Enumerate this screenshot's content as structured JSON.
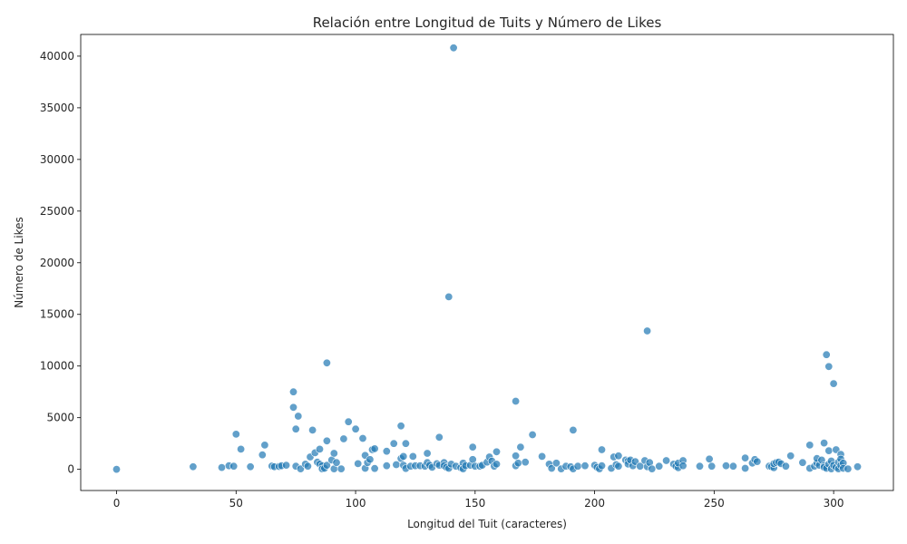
{
  "chart_data": {
    "type": "scatter",
    "title": "Relación entre Longitud de Tuits y Número de Likes",
    "xlabel": "Longitud del Tuit (caracteres)",
    "ylabel": "Número de Likes",
    "xlim": [
      -15,
      325
    ],
    "ylim": [
      -2050,
      42100
    ],
    "xticks": [
      0,
      50,
      100,
      150,
      200,
      250,
      300
    ],
    "yticks": [
      0,
      5000,
      10000,
      15000,
      20000,
      25000,
      30000,
      35000,
      40000
    ],
    "grid": false,
    "marker_color": "#1f77b4",
    "points": [
      [
        0,
        0
      ],
      [
        32,
        250
      ],
      [
        44,
        180
      ],
      [
        47,
        350
      ],
      [
        49,
        300
      ],
      [
        50,
        3400
      ],
      [
        52,
        1950
      ],
      [
        56,
        250
      ],
      [
        61,
        1400
      ],
      [
        62,
        2350
      ],
      [
        65,
        320
      ],
      [
        66,
        250
      ],
      [
        68,
        280
      ],
      [
        69,
        350
      ],
      [
        71,
        400
      ],
      [
        74,
        7500
      ],
      [
        74,
        6000
      ],
      [
        75,
        3900
      ],
      [
        75,
        300
      ],
      [
        76,
        5150
      ],
      [
        77,
        50
      ],
      [
        79,
        500
      ],
      [
        80,
        300
      ],
      [
        81,
        1200
      ],
      [
        82,
        3800
      ],
      [
        83,
        1600
      ],
      [
        84,
        700
      ],
      [
        85,
        500
      ],
      [
        85,
        1950
      ],
      [
        86,
        350
      ],
      [
        86,
        50
      ],
      [
        87,
        100
      ],
      [
        88,
        10300
      ],
      [
        88,
        2750
      ],
      [
        88,
        400
      ],
      [
        90,
        900
      ],
      [
        91,
        1550
      ],
      [
        91,
        50
      ],
      [
        92,
        650
      ],
      [
        94,
        50
      ],
      [
        95,
        2950
      ],
      [
        97,
        4600
      ],
      [
        100,
        3900
      ],
      [
        101,
        550
      ],
      [
        103,
        3000
      ],
      [
        104,
        1350
      ],
      [
        104,
        100
      ],
      [
        105,
        650
      ],
      [
        106,
        950
      ],
      [
        107,
        1900
      ],
      [
        108,
        2000
      ],
      [
        108,
        80
      ],
      [
        113,
        1750
      ],
      [
        113,
        350
      ],
      [
        116,
        2500
      ],
      [
        117,
        450
      ],
      [
        119,
        4200
      ],
      [
        119,
        1050
      ],
      [
        120,
        400
      ],
      [
        120,
        1250
      ],
      [
        121,
        2500
      ],
      [
        121,
        80
      ],
      [
        123,
        300
      ],
      [
        124,
        1250
      ],
      [
        125,
        350
      ],
      [
        127,
        350
      ],
      [
        129,
        300
      ],
      [
        130,
        1550
      ],
      [
        130,
        650
      ],
      [
        131,
        400
      ],
      [
        132,
        200
      ],
      [
        134,
        550
      ],
      [
        135,
        3100
      ],
      [
        135,
        400
      ],
      [
        137,
        650
      ],
      [
        137,
        350
      ],
      [
        138,
        200
      ],
      [
        139,
        16700
      ],
      [
        139,
        100
      ],
      [
        140,
        500
      ],
      [
        141,
        40800
      ],
      [
        142,
        300
      ],
      [
        144,
        150
      ],
      [
        145,
        600
      ],
      [
        145,
        50
      ],
      [
        146,
        350
      ],
      [
        148,
        400
      ],
      [
        149,
        2150
      ],
      [
        149,
        950
      ],
      [
        150,
        300
      ],
      [
        152,
        300
      ],
      [
        153,
        400
      ],
      [
        155,
        700
      ],
      [
        156,
        1200
      ],
      [
        157,
        800
      ],
      [
        158,
        300
      ],
      [
        159,
        500
      ],
      [
        159,
        1700
      ],
      [
        167,
        6600
      ],
      [
        167,
        1300
      ],
      [
        167,
        350
      ],
      [
        168,
        600
      ],
      [
        169,
        2150
      ],
      [
        171,
        700
      ],
      [
        174,
        3350
      ],
      [
        178,
        1250
      ],
      [
        181,
        500
      ],
      [
        182,
        100
      ],
      [
        184,
        600
      ],
      [
        186,
        50
      ],
      [
        188,
        300
      ],
      [
        190,
        250
      ],
      [
        191,
        3800
      ],
      [
        191,
        50
      ],
      [
        193,
        300
      ],
      [
        196,
        350
      ],
      [
        200,
        400
      ],
      [
        201,
        200
      ],
      [
        202,
        50
      ],
      [
        203,
        1900
      ],
      [
        203,
        350
      ],
      [
        207,
        100
      ],
      [
        208,
        1200
      ],
      [
        209,
        450
      ],
      [
        210,
        1300
      ],
      [
        210,
        300
      ],
      [
        213,
        900
      ],
      [
        214,
        800
      ],
      [
        214,
        500
      ],
      [
        215,
        900
      ],
      [
        216,
        350
      ],
      [
        217,
        750
      ],
      [
        219,
        300
      ],
      [
        221,
        850
      ],
      [
        222,
        13400
      ],
      [
        222,
        250
      ],
      [
        223,
        650
      ],
      [
        224,
        50
      ],
      [
        227,
        300
      ],
      [
        230,
        850
      ],
      [
        233,
        500
      ],
      [
        234,
        300
      ],
      [
        235,
        150
      ],
      [
        235,
        600
      ],
      [
        237,
        850
      ],
      [
        237,
        350
      ],
      [
        244,
        300
      ],
      [
        248,
        1000
      ],
      [
        249,
        300
      ],
      [
        255,
        350
      ],
      [
        258,
        300
      ],
      [
        263,
        1100
      ],
      [
        263,
        100
      ],
      [
        266,
        600
      ],
      [
        267,
        950
      ],
      [
        268,
        750
      ],
      [
        273,
        300
      ],
      [
        274,
        250
      ],
      [
        275,
        150
      ],
      [
        275,
        550
      ],
      [
        276,
        650
      ],
      [
        277,
        700
      ],
      [
        278,
        550
      ],
      [
        280,
        300
      ],
      [
        282,
        1300
      ],
      [
        287,
        650
      ],
      [
        290,
        2350
      ],
      [
        290,
        100
      ],
      [
        292,
        300
      ],
      [
        293,
        600
      ],
      [
        293,
        1050
      ],
      [
        294,
        400
      ],
      [
        295,
        900
      ],
      [
        296,
        2550
      ],
      [
        296,
        350
      ],
      [
        296,
        200
      ],
      [
        297,
        11100
      ],
      [
        297,
        100
      ],
      [
        298,
        9950
      ],
      [
        298,
        1800
      ],
      [
        298,
        500
      ],
      [
        299,
        800
      ],
      [
        299,
        50
      ],
      [
        300,
        8300
      ],
      [
        300,
        400
      ],
      [
        301,
        1900
      ],
      [
        301,
        200
      ],
      [
        302,
        700
      ],
      [
        302,
        50
      ],
      [
        303,
        1450
      ],
      [
        303,
        1000
      ],
      [
        303,
        400
      ],
      [
        304,
        600
      ],
      [
        304,
        100
      ],
      [
        306,
        50
      ],
      [
        310,
        250
      ]
    ]
  }
}
